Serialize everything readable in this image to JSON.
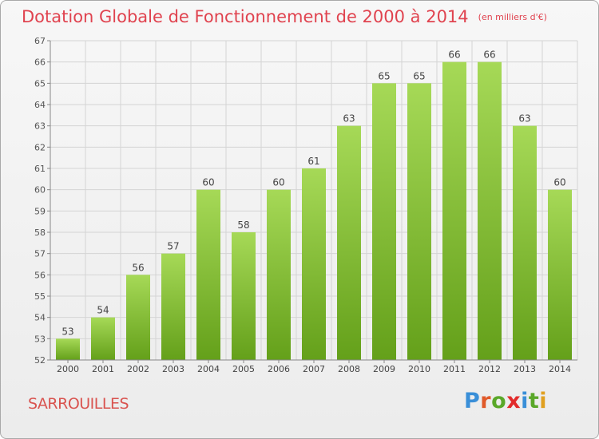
{
  "header": {
    "title": "Dotation Globale de Fonctionnement de 2000 à 2014",
    "unit": "(en milliers d'€)"
  },
  "commune": "SARROUILLES",
  "logo": {
    "text": "Proxiti",
    "letters": [
      "P",
      "r",
      "o",
      "x",
      "i",
      "t",
      "i"
    ],
    "colors": [
      "#3a8fd8",
      "#e05a2a",
      "#5aa829",
      "#e22b2b",
      "#3a8fd8",
      "#5aa829",
      "#e0a020"
    ]
  },
  "colors": {
    "title": "#e0434f",
    "bar_top": "#a6d957",
    "bar_bottom": "#64a01a",
    "grid": "#d4d4d4",
    "axis": "#888888"
  },
  "chart_data": {
    "type": "bar",
    "title": "Dotation Globale de Fonctionnement de 2000 à 2014",
    "subtitle": "(en milliers d'€)",
    "categories": [
      "2000",
      "2001",
      "2002",
      "2003",
      "2004",
      "2005",
      "2006",
      "2007",
      "2008",
      "2009",
      "2010",
      "2011",
      "2012",
      "2013",
      "2014"
    ],
    "values": [
      53,
      54,
      56,
      57,
      60,
      58,
      60,
      61,
      63,
      65,
      65,
      66,
      66,
      63,
      60
    ],
    "ylim": [
      52,
      67
    ],
    "yticks": [
      52,
      53,
      54,
      55,
      56,
      57,
      58,
      59,
      60,
      61,
      62,
      63,
      64,
      65,
      66,
      67
    ],
    "grid": true,
    "data_labels": true
  }
}
